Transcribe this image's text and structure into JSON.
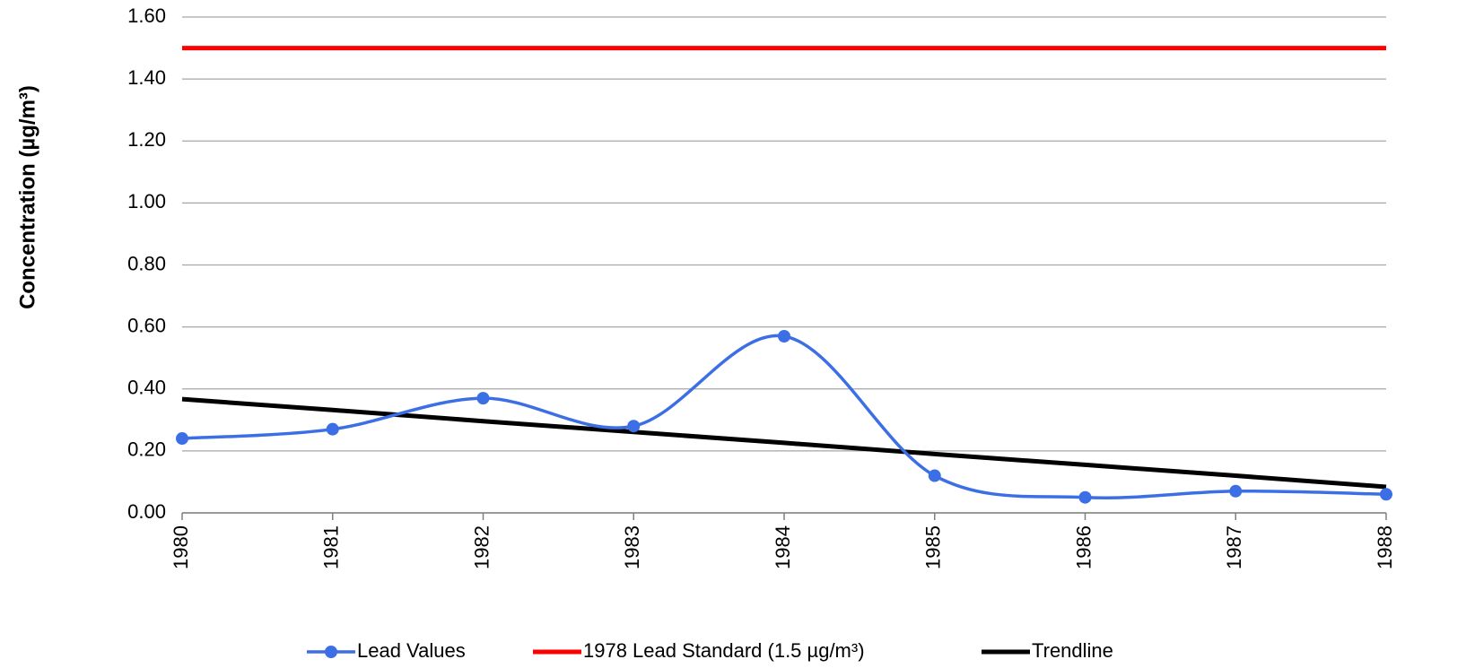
{
  "chart_data": {
    "type": "line",
    "y_label": "Concentration (µg/m³)",
    "categories": [
      "1980",
      "1981",
      "1982",
      "1983",
      "1984",
      "1985",
      "1986",
      "1987",
      "1988"
    ],
    "series": [
      {
        "name": "Lead Values",
        "color": "#3c6ee6",
        "smooth": true,
        "markers": true,
        "values": [
          0.24,
          0.27,
          0.37,
          0.28,
          0.57,
          0.12,
          0.05,
          0.07,
          0.06
        ]
      },
      {
        "name": "1978 Lead Standard (1.5 µg/m³)",
        "color": "#ff0000",
        "smooth": false,
        "markers": false,
        "values": [
          1.5,
          1.5,
          1.5,
          1.5,
          1.5,
          1.5,
          1.5,
          1.5,
          1.5
        ]
      },
      {
        "name": "Trendline",
        "color": "#000000",
        "smooth": false,
        "markers": false,
        "values": [
          0.367,
          0.332,
          0.296,
          0.261,
          0.226,
          0.19,
          0.155,
          0.12,
          0.084
        ]
      }
    ],
    "ylim": [
      0,
      1.6
    ],
    "yticks": [
      {
        "value": 0,
        "label": "0.00"
      },
      {
        "value": 0.2,
        "label": "0.20"
      },
      {
        "value": 0.4,
        "label": "0.40"
      },
      {
        "value": 0.6,
        "label": "0.60"
      },
      {
        "value": 0.8,
        "label": "0.80"
      },
      {
        "value": 1.0,
        "label": "1.00"
      },
      {
        "value": 1.2,
        "label": "1.20"
      },
      {
        "value": 1.4,
        "label": "1.40"
      },
      {
        "value": 1.6,
        "label": "1.60"
      }
    ],
    "grid": true,
    "legend": "bottom"
  }
}
